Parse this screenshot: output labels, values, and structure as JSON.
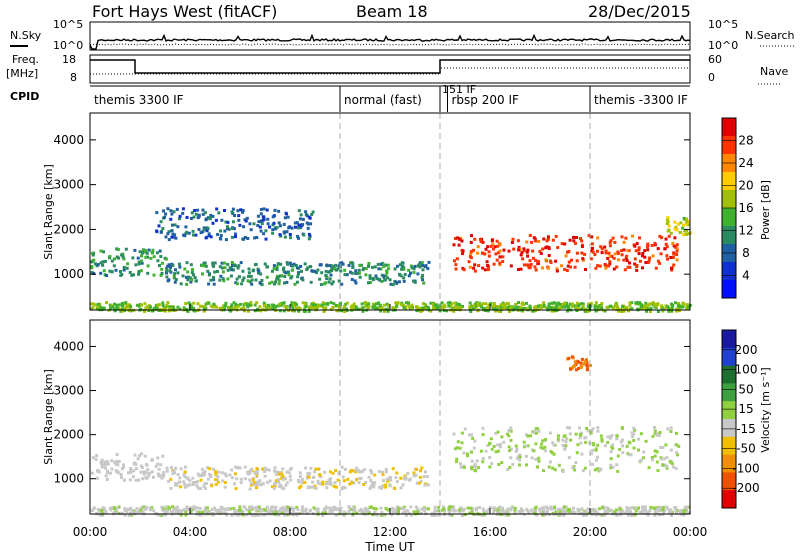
{
  "header": {
    "title": "Fort Hays West (fitACF)",
    "beam": "Beam 18",
    "date": "28/Dec/2015"
  },
  "top_panels": {
    "nsky_label": "N.Sky",
    "nsky_ticks": [
      "10^5",
      "10^0"
    ],
    "nsearch_label": "N.Search",
    "nsearch_ticks": [
      "10^5",
      "10^0"
    ],
    "freq_label": "Freq.",
    "freq_unit": "[MHz]",
    "freq_ticks": [
      "18",
      "8"
    ],
    "nave_label": "Nave",
    "nave_ticks": [
      "60",
      "0"
    ],
    "cpid_label": "CPID",
    "cpid_segments": [
      {
        "start": 0,
        "end": 10,
        "label": "themis 3300 IF"
      },
      {
        "start": 10,
        "end": 14,
        "label": "normal (fast)"
      },
      {
        "start": 14,
        "end": 14.3,
        "label": "151 IF"
      },
      {
        "start": 14.3,
        "end": 20,
        "label": "rbsp 200 IF"
      },
      {
        "start": 20,
        "end": 24,
        "label": "themis -3300 IF"
      }
    ],
    "freq_steps": [
      {
        "start": 0,
        "end": 1.8,
        "value": 17.5
      },
      {
        "start": 1.8,
        "end": 14,
        "value": 11
      },
      {
        "start": 14,
        "end": 24,
        "value": 17.5
      }
    ]
  },
  "x_axis": {
    "label": "Time UT",
    "ticks": [
      "00:00",
      "04:00",
      "08:00",
      "12:00",
      "16:00",
      "20:00",
      "00:00"
    ]
  },
  "power_colorbar": {
    "label": "Power [dB]",
    "ticks": [
      "28",
      "24",
      "20",
      "16",
      "12",
      "8",
      "4"
    ],
    "colors": [
      "#e00000",
      "#ff3300",
      "#ff8800",
      "#ffcc00",
      "#a0c000",
      "#40b030",
      "#2a8a60",
      "#2060a0",
      "#1030d0",
      "#0010ff"
    ]
  },
  "velocity_colorbar": {
    "label": "Velocity [m s⁻¹]",
    "ticks": [
      "200",
      "100",
      "50",
      "15",
      "-15",
      "-50",
      "-100",
      "-200"
    ],
    "colors": [
      "#1a1aa0",
      "#2040d0",
      "#1e6e30",
      "#40a040",
      "#90d040",
      "#c8c8c8",
      "#f0c000",
      "#f09000",
      "#f05000",
      "#e00000"
    ]
  },
  "chart_data": [
    {
      "type": "heatmap",
      "title": "Power",
      "ylabel": "Slant Range [km]",
      "xlabel": "Time UT",
      "xlim": [
        0,
        24
      ],
      "ylim": [
        200,
        4600
      ],
      "yticks": [
        "1000",
        "2000",
        "3000",
        "4000"
      ],
      "colorbar_label": "Power [dB]",
      "colorbar_range": [
        0,
        32
      ],
      "features": [
        {
          "t_start": 0,
          "t_end": 3,
          "range_start": 1000,
          "range_end": 1600,
          "value": 12
        },
        {
          "t_start": 3,
          "t_end": 13.5,
          "range_start": 800,
          "range_end": 1300,
          "value": 11
        },
        {
          "t_start": 14.5,
          "t_end": 23.5,
          "range_start": 1100,
          "range_end": 1900,
          "value": 28
        },
        {
          "t_start": 0,
          "t_end": 24,
          "range_start": 200,
          "range_end": 400,
          "value": 16
        },
        {
          "t_start": 2.5,
          "t_end": 9,
          "range_start": 1800,
          "range_end": 2500,
          "value": 8
        },
        {
          "t_start": 23,
          "t_end": 24,
          "range_start": 1900,
          "range_end": 2300,
          "value": 18
        }
      ]
    },
    {
      "type": "heatmap",
      "title": "Velocity",
      "ylabel": "Slant Range [km]",
      "xlabel": "Time UT",
      "xlim": [
        0,
        24
      ],
      "ylim": [
        200,
        4600
      ],
      "yticks": [
        "1000",
        "2000",
        "3000",
        "4000"
      ],
      "colorbar_label": "Velocity [m s⁻¹]",
      "colorbar_range": [
        -250,
        250
      ],
      "features": [
        {
          "t_start": 0,
          "t_end": 3,
          "range_start": 1000,
          "range_end": 1600,
          "value": -30
        },
        {
          "t_start": 3,
          "t_end": 13.5,
          "range_start": 800,
          "range_end": 1300,
          "value": -40
        },
        {
          "t_start": 14.5,
          "t_end": 23.5,
          "range_start": 1200,
          "range_end": 2200,
          "value": 0
        },
        {
          "t_start": 0,
          "t_end": 24,
          "range_start": 200,
          "range_end": 400,
          "value": -10
        },
        {
          "t_start": 19,
          "t_end": 20,
          "range_start": 3500,
          "range_end": 3800,
          "value": -150
        }
      ]
    }
  ]
}
